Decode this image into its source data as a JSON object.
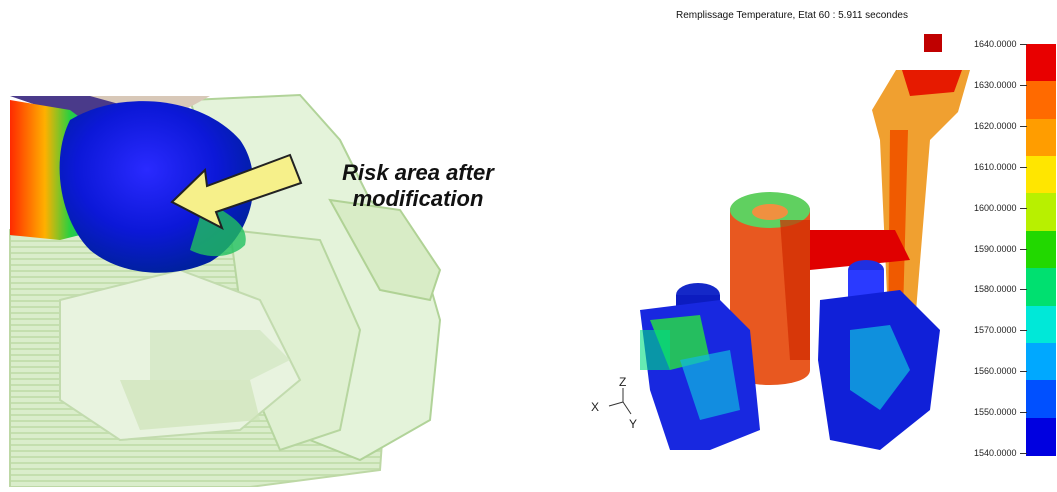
{
  "annotation": {
    "risk_line1": "Risk area after",
    "risk_line2": "modification"
  },
  "simulation": {
    "title": "Remplissage Temperature,  Etat 60 :  5.911 secondes"
  },
  "legend": {
    "ticks": [
      "1640.0000",
      "1630.0000",
      "1620.0000",
      "1610.0000",
      "1600.0000",
      "1590.0000",
      "1580.0000",
      "1570.0000",
      "1560.0000",
      "1550.0000",
      "1540.0000"
    ],
    "colors": [
      "#e80000",
      "#ff6a00",
      "#ff9d00",
      "#ffe600",
      "#b8f000",
      "#22d800",
      "#00e070",
      "#00e8d8",
      "#00a8ff",
      "#0050ff",
      "#0000e0"
    ]
  },
  "axes": {
    "z": "Z",
    "x": "X",
    "y": "Y"
  }
}
